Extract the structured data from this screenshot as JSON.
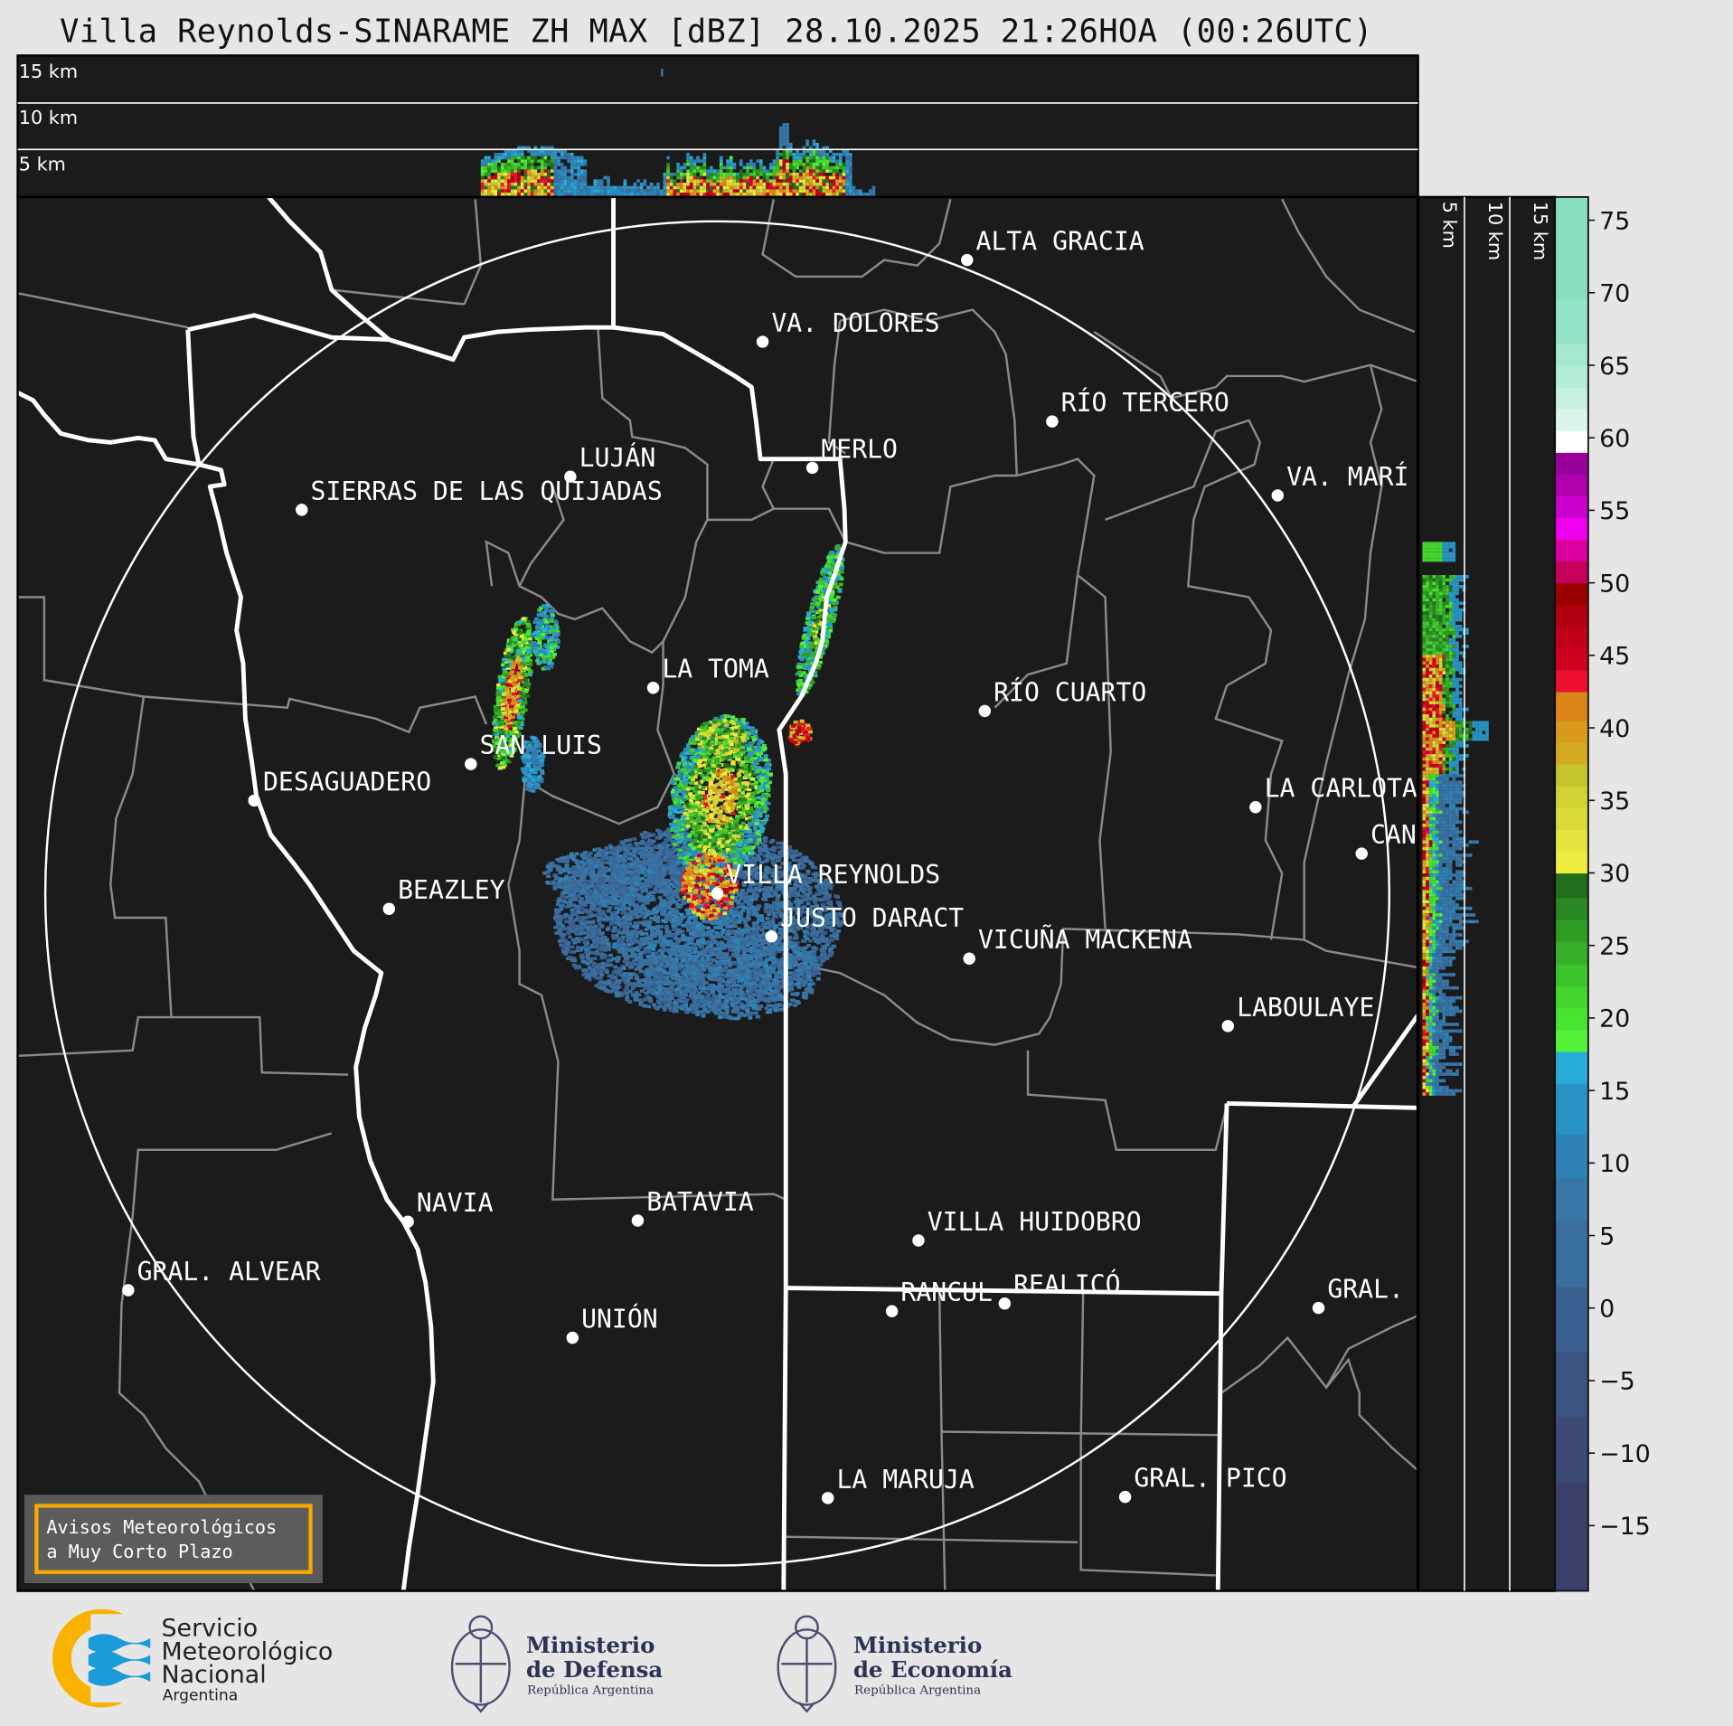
{
  "title": "Villa Reynolds-SINARAME ZH MAX [dBZ] 28.10.2025 21:26HOA (00:26UTC)",
  "top_panel": {
    "labels": [
      "15 km",
      "10 km",
      "5 km"
    ]
  },
  "side_panel": {
    "labels": [
      "5 km",
      "10 km",
      "15 km"
    ]
  },
  "map": {
    "background": "#1b1b1b",
    "radar_site": "VILLA REYNOLDS",
    "cities": [
      "ALTA GRACIA",
      "VA. DOLORES",
      "RÍO TERCERO",
      "MERLO",
      "LUJÁN",
      "SIERRAS DE LAS QUIJADAS",
      "VA. MARÍ",
      "LA TOMA",
      "RÍO CUARTO",
      "SAN LUIS",
      "DESAGUADERO",
      "LA CARLOTA",
      "CAN",
      "VILLA REYNOLDS",
      "BEAZLEY",
      "JUSTO DARACT",
      "VICUÑA MACKENA",
      "LABOULAYE",
      "NAVIA",
      "BATAVIA",
      "VILLA HUIDOBRO",
      "GRAL. ALVEAR",
      "RANCUL",
      "REALICÓ",
      "GRAL.",
      "UNIÓN",
      "LA MARUJA",
      "GRAL. PICO"
    ]
  },
  "alert_box": {
    "line1": "Avisos Meteorológicos",
    "line2": "a Muy Corto Plazo",
    "border_color": "#f5a800"
  },
  "colorbar": {
    "unit": "dBZ",
    "range": [
      -19.5,
      76.6
    ],
    "ticks": [
      "75",
      "70",
      "65",
      "60",
      "55",
      "50",
      "45",
      "40",
      "35",
      "30",
      "25",
      "20",
      "15",
      "10",
      "5",
      "0",
      "−5",
      "−10",
      "−15"
    ],
    "tick_values": [
      75,
      70,
      65,
      60,
      55,
      50,
      45,
      40,
      35,
      30,
      25,
      20,
      15,
      10,
      5,
      0,
      -5,
      -10,
      -15
    ],
    "bands": [
      [
        -19.5,
        -12,
        "#3d3f6b"
      ],
      [
        -12,
        -7.5,
        "#3d4a75"
      ],
      [
        -7.5,
        -3,
        "#3c5482"
      ],
      [
        -3,
        1.5,
        "#3a6090"
      ],
      [
        1.5,
        6,
        "#3a6e9e"
      ],
      [
        6,
        9,
        "#3776a7"
      ],
      [
        9,
        12,
        "#2f82b5"
      ],
      [
        12,
        15.5,
        "#2993c4"
      ],
      [
        15.5,
        17.7,
        "#27abd8"
      ],
      [
        17.7,
        19.2,
        "#55f23a"
      ],
      [
        19.2,
        20.7,
        "#48e432"
      ],
      [
        20.7,
        22.2,
        "#44d62e"
      ],
      [
        22.2,
        23.7,
        "#3cc42a"
      ],
      [
        23.7,
        25.3,
        "#36b028"
      ],
      [
        25.3,
        26.8,
        "#2f9c24"
      ],
      [
        26.8,
        28.3,
        "#2a8822"
      ],
      [
        28.3,
        30,
        "#236e1c"
      ],
      [
        30,
        31.5,
        "#eded40"
      ],
      [
        31.5,
        33,
        "#e4e43c"
      ],
      [
        33,
        34.5,
        "#dada38"
      ],
      [
        34.5,
        36,
        "#d2d232"
      ],
      [
        36,
        37.5,
        "#c4c42e"
      ],
      [
        37.5,
        39,
        "#d4aa22"
      ],
      [
        39,
        40.5,
        "#d89a1a"
      ],
      [
        40.5,
        42.5,
        "#dc8418"
      ],
      [
        42.5,
        44,
        "#ee1030"
      ],
      [
        44,
        45.5,
        "#d00020"
      ],
      [
        45.5,
        47,
        "#c00018"
      ],
      [
        47,
        48.5,
        "#b00010"
      ],
      [
        48.5,
        50,
        "#9a0000"
      ],
      [
        50,
        51.5,
        "#c4005a"
      ],
      [
        51.5,
        53,
        "#dc00a0"
      ],
      [
        53,
        54.5,
        "#ee00ee"
      ],
      [
        54.5,
        56,
        "#cc00cc"
      ],
      [
        56,
        57.5,
        "#b000b0"
      ],
      [
        57.5,
        59,
        "#9a009a"
      ],
      [
        59,
        60.5,
        "#ffffff"
      ],
      [
        60.5,
        62,
        "#dcf5ea"
      ],
      [
        62,
        63.5,
        "#c6f1dd"
      ],
      [
        63.5,
        65,
        "#b4edd6"
      ],
      [
        65,
        66.5,
        "#a6e9cd"
      ],
      [
        66.5,
        69.5,
        "#94e3c6"
      ],
      [
        69.5,
        76.6,
        "#8adfbe"
      ]
    ]
  },
  "logos": {
    "smn": {
      "line1": "Servicio",
      "line2": "Meteorológico",
      "line3": "Nacional",
      "line4": "Argentina",
      "orange": "#f9b200",
      "blue": "#1a9ad6"
    },
    "defensa": {
      "line1": "Ministerio",
      "line2": "de Defensa",
      "line3": "República Argentina"
    },
    "economia": {
      "line1": "Ministerio",
      "line2": "de Economía",
      "line3": "República Argentina"
    },
    "ink": "#2b3355"
  }
}
